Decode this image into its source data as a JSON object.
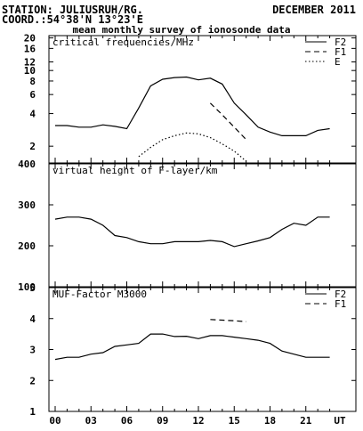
{
  "header": {
    "station": "STATION: JULIUSRUH/RG.",
    "coords": "COORD.:54°38'N 13°23'E",
    "date": "DECEMBER 2011",
    "title": "mean monthly survey of ionosonde data"
  },
  "x_axis": {
    "ticks": [
      "00",
      "03",
      "06",
      "09",
      "12",
      "15",
      "18",
      "21",
      "UT"
    ]
  },
  "chart_data": [
    {
      "type": "line",
      "title": "critical frequencies/MHz",
      "log_scale": true,
      "ylim": [
        1.4,
        21
      ],
      "yticks": [
        "20",
        "16",
        "12",
        "10",
        "8",
        "6",
        "4",
        "2"
      ],
      "xlim": [
        0,
        24
      ],
      "legend": [
        {
          "label": "F2",
          "dash": "solid"
        },
        {
          "label": "F1",
          "dash": "dashed"
        },
        {
          "label": "E",
          "dash": "dotted"
        }
      ],
      "series": [
        {
          "name": "F2",
          "dash": "solid",
          "x": [
            0,
            1,
            2,
            3,
            4,
            5,
            6,
            7,
            8,
            9,
            10,
            11,
            12,
            13,
            14,
            15,
            16,
            17,
            18,
            19,
            20,
            21,
            22,
            23
          ],
          "y": [
            3.1,
            3.1,
            3.0,
            3.0,
            3.15,
            3.05,
            2.9,
            4.5,
            7.2,
            8.3,
            8.6,
            8.7,
            8.2,
            8.5,
            7.5,
            5.0,
            3.9,
            3.0,
            2.7,
            2.5,
            2.5,
            2.5,
            2.8,
            2.9
          ]
        },
        {
          "name": "F1",
          "dash": "dashed",
          "x": [
            13,
            14,
            15,
            16
          ],
          "y": [
            5.0,
            3.9,
            3.0,
            2.3
          ]
        },
        {
          "name": "E",
          "dash": "dotted",
          "x": [
            7,
            8,
            9,
            10,
            11,
            12,
            13,
            14,
            15,
            16
          ],
          "y": [
            1.6,
            1.95,
            2.3,
            2.5,
            2.65,
            2.6,
            2.4,
            2.1,
            1.8,
            1.45
          ]
        }
      ]
    },
    {
      "type": "line",
      "title": "virtual height of F-layer/km",
      "ylim": [
        100,
        400
      ],
      "yticks": [
        "400",
        "300",
        "200",
        "100"
      ],
      "xlim": [
        0,
        24
      ],
      "series": [
        {
          "name": "",
          "dash": "solid",
          "x": [
            0,
            1,
            2,
            3,
            4,
            5,
            6,
            7,
            8,
            9,
            10,
            11,
            12,
            13,
            14,
            15,
            16,
            17,
            18,
            19,
            20,
            21,
            22,
            23
          ],
          "y": [
            265,
            270,
            270,
            265,
            250,
            225,
            220,
            210,
            205,
            205,
            210,
            210,
            210,
            213,
            210,
            198,
            205,
            212,
            220,
            240,
            255,
            250,
            270,
            270
          ]
        }
      ]
    },
    {
      "type": "line",
      "title": "MUF-Factor M3000",
      "ylim": [
        1,
        5
      ],
      "yticks": [
        "5",
        "4",
        "3",
        "2",
        "1"
      ],
      "xlim": [
        0,
        24
      ],
      "legend": [
        {
          "label": "F2",
          "dash": "solid"
        },
        {
          "label": "F1",
          "dash": "dashed"
        }
      ],
      "series": [
        {
          "name": "F2",
          "dash": "solid",
          "x": [
            0,
            1,
            2,
            3,
            4,
            5,
            6,
            7,
            8,
            9,
            10,
            11,
            12,
            13,
            14,
            15,
            16,
            17,
            18,
            19,
            20,
            21,
            22,
            23
          ],
          "y": [
            2.68,
            2.75,
            2.75,
            2.85,
            2.9,
            3.1,
            3.15,
            3.2,
            3.5,
            3.5,
            3.42,
            3.43,
            3.35,
            3.45,
            3.45,
            3.4,
            3.35,
            3.3,
            3.2,
            2.95,
            2.85,
            2.75,
            2.75,
            2.75
          ]
        },
        {
          "name": "F1",
          "dash": "dashed",
          "x": [
            13,
            14,
            15,
            16
          ],
          "y": [
            3.97,
            3.95,
            3.93,
            3.9
          ]
        }
      ]
    }
  ]
}
